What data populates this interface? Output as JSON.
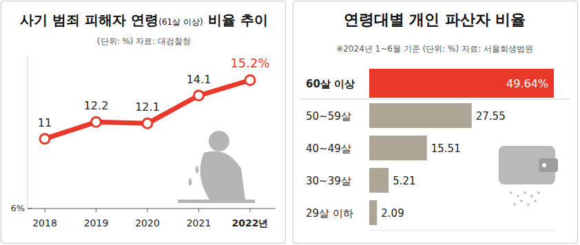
{
  "chart_data": [
    {
      "type": "line",
      "title": "사기 범죄 피해자 연령(61살 이상) 비율 추이",
      "subtitle": "(단위: %)  자료: 대검찰청",
      "categories": [
        "2018",
        "2019",
        "2020",
        "2021",
        "2022년"
      ],
      "values": [
        11,
        12.2,
        12.1,
        14.1,
        15.2
      ],
      "value_labels": [
        "11",
        "12.2",
        "12.1",
        "14.1",
        "15.2%"
      ],
      "color": "#e8392b",
      "marker": "circle",
      "ylim": [
        6,
        17
      ],
      "yticks": [
        {
          "value": 6,
          "label": "6%"
        }
      ],
      "grid": false,
      "data_labels": true
    },
    {
      "type": "bar",
      "orientation": "horizontal",
      "title": "연령대별 개인 파산자 비율",
      "subtitle": "※2024년 1~6월 기준 (단위: %)  자료: 서울회생법원",
      "categories": [
        "60살 이상",
        "50~59살",
        "40~49살",
        "30~39살",
        "29살 이하"
      ],
      "values": [
        49.64,
        27.55,
        15.51,
        5.21,
        2.09
      ],
      "value_labels": [
        "49.64%",
        "27.55",
        "15.51",
        "5.21",
        "2.09"
      ],
      "colors": [
        "#e8392b",
        "#aca494",
        "#aca494",
        "#aca494",
        "#aca494"
      ],
      "xlim": [
        0,
        50
      ],
      "xticks": [],
      "grid": false,
      "tick_labels": false,
      "data_labels": true
    }
  ]
}
